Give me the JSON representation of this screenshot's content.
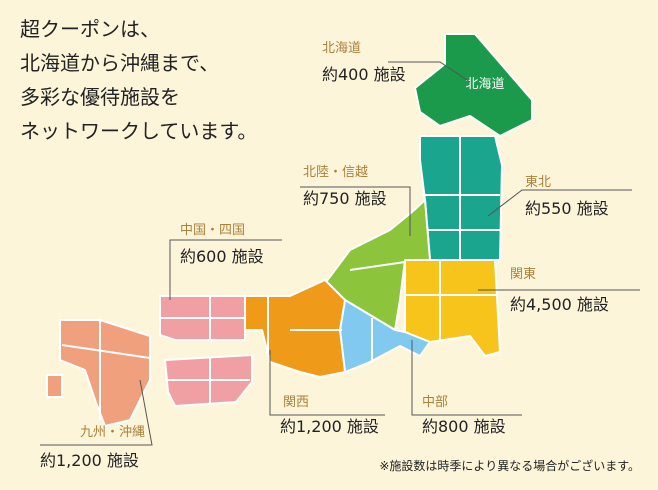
{
  "heading": {
    "lines": [
      "超クーポンは、",
      "北海道から沖縄まで、",
      "多彩な優待施設を",
      "ネットワークしています。"
    ]
  },
  "map_label": "北海道",
  "regions": [
    {
      "name": "北海道",
      "facilities": "約400 施設"
    },
    {
      "name": "北陸・信越",
      "facilities": "約750 施設"
    },
    {
      "name": "東北",
      "facilities": "約550 施設"
    },
    {
      "name": "中国・四国",
      "facilities": "約600 施設"
    },
    {
      "name": "関東",
      "facilities": "約4,500 施設"
    },
    {
      "name": "関西",
      "facilities": "約1,200 施設"
    },
    {
      "name": "中部",
      "facilities": "約800 施設"
    },
    {
      "name": "九州・沖縄",
      "facilities": "約1,200 施設"
    }
  ],
  "footnote": "※施設数は時季により異なる場合がございます。"
}
